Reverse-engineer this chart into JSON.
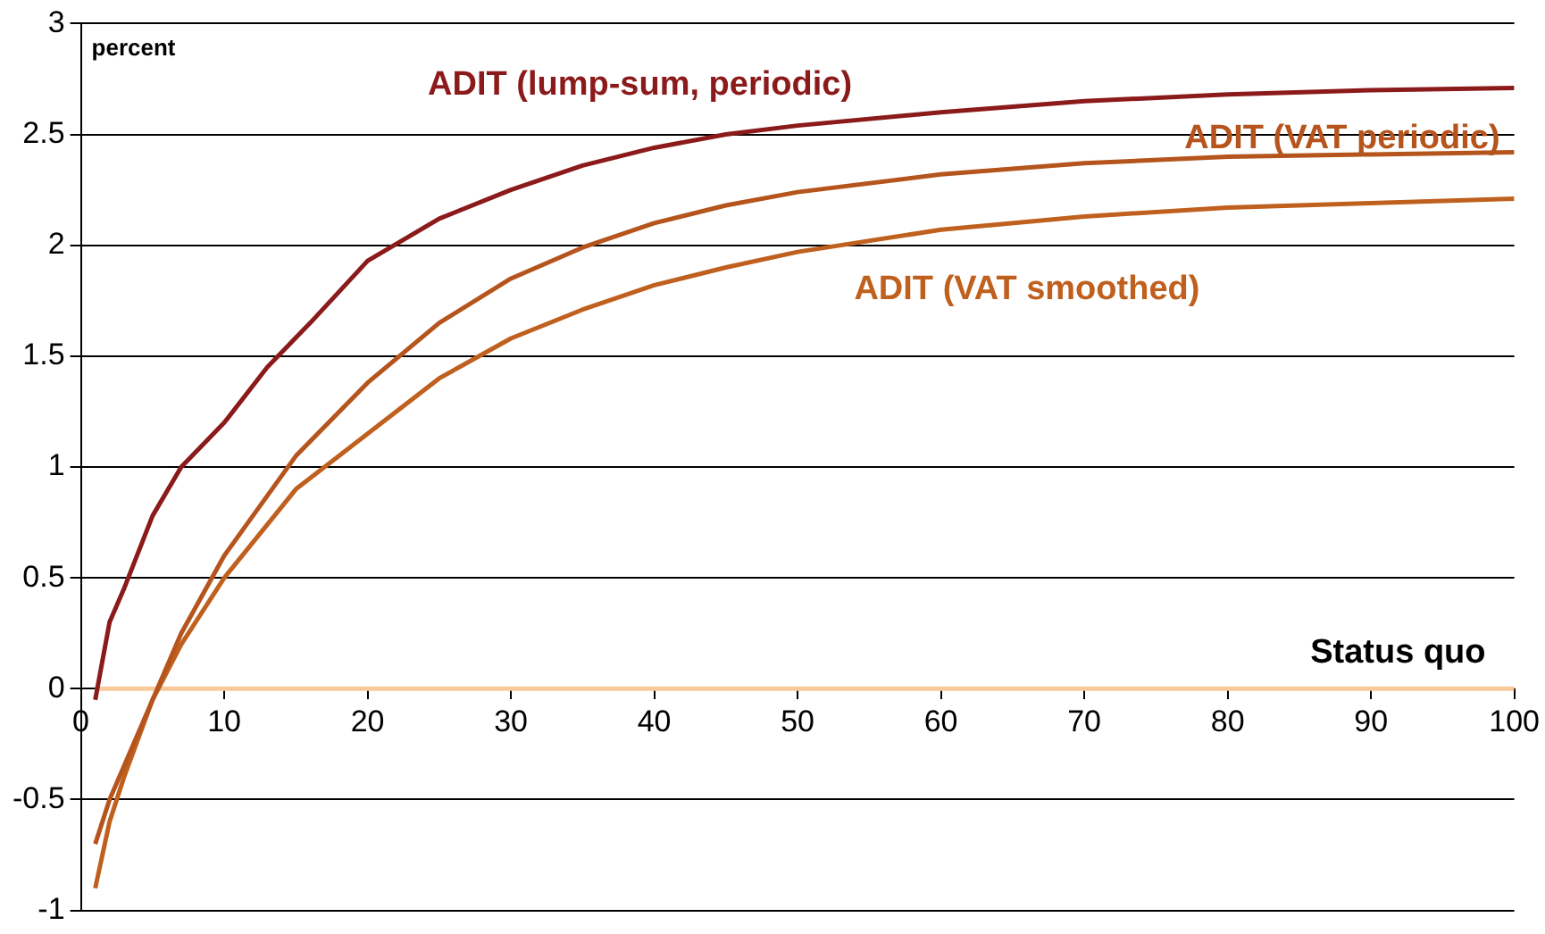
{
  "chart_data": {
    "type": "line",
    "ylabel": "percent",
    "xlim": [
      0,
      100
    ],
    "xticks": [
      0,
      10,
      20,
      30,
      40,
      50,
      60,
      70,
      80,
      90,
      100
    ],
    "ylim": [
      -1,
      3
    ],
    "yticks": [
      -1,
      -0.5,
      0,
      0.5,
      1,
      1.5,
      2,
      2.5,
      3
    ],
    "grid": "y",
    "legend": false,
    "marker": "none",
    "line_style": "solid",
    "series": [
      {
        "name": "ADIT (lump-sum, periodic)",
        "color": "#8b1a1a",
        "x": [
          1,
          2,
          3,
          5,
          7,
          10,
          13,
          16,
          20,
          25,
          30,
          35,
          40,
          45,
          50,
          60,
          70,
          80,
          90,
          100
        ],
        "values": [
          -0.05,
          0.3,
          0.45,
          0.78,
          1.0,
          1.2,
          1.45,
          1.65,
          1.93,
          2.12,
          2.25,
          2.36,
          2.44,
          2.5,
          2.54,
          2.6,
          2.65,
          2.68,
          2.7,
          2.71
        ]
      },
      {
        "name": "ADIT (VAT periodic)",
        "color": "#b5541c",
        "x": [
          1,
          2,
          3,
          5,
          7,
          10,
          15,
          20,
          25,
          30,
          35,
          40,
          45,
          50,
          60,
          70,
          80,
          90,
          100
        ],
        "values": [
          -0.7,
          -0.5,
          -0.35,
          -0.05,
          0.25,
          0.6,
          1.05,
          1.38,
          1.65,
          1.85,
          1.99,
          2.1,
          2.18,
          2.24,
          2.32,
          2.37,
          2.4,
          2.41,
          2.42
        ]
      },
      {
        "name": "ADIT (VAT smoothed)",
        "color": "#c0601e",
        "x": [
          1,
          2,
          3,
          5,
          7,
          10,
          15,
          20,
          25,
          30,
          35,
          40,
          45,
          50,
          60,
          70,
          80,
          90,
          100
        ],
        "values": [
          -0.9,
          -0.6,
          -0.4,
          -0.05,
          0.2,
          0.5,
          0.9,
          1.15,
          1.4,
          1.58,
          1.71,
          1.82,
          1.9,
          1.97,
          2.07,
          2.13,
          2.17,
          2.19,
          2.21
        ]
      },
      {
        "name": "Status quo",
        "color": "#f9c89b",
        "x": [
          1,
          100
        ],
        "values": [
          0,
          0
        ]
      }
    ]
  }
}
